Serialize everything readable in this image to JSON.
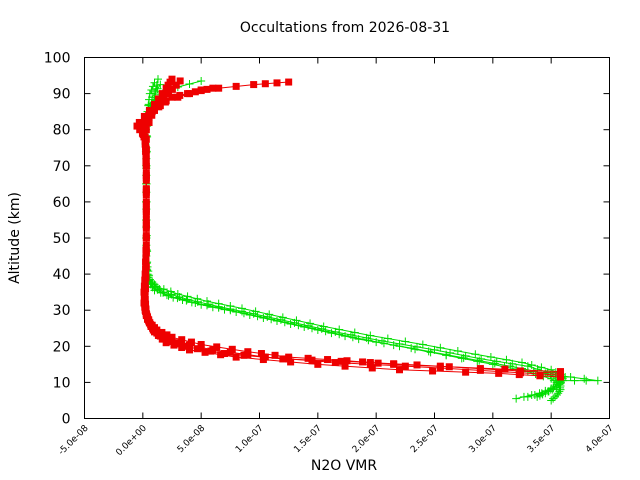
{
  "chart_data": {
    "type": "scatter",
    "title": "Occultations from 2026-08-31",
    "xlabel": "N2O VMR",
    "ylabel": "Altitude (km)",
    "xlim": [
      -5e-08,
      4e-07
    ],
    "ylim": [
      0,
      100
    ],
    "grid": false,
    "legend": "none",
    "x_ticks": [
      {
        "value": -5e-08,
        "label": "-5.0e-08"
      },
      {
        "value": 0,
        "label": "0.0e+00"
      },
      {
        "value": 5e-08,
        "label": "5.0e-08"
      },
      {
        "value": 1e-07,
        "label": "1.0e-07"
      },
      {
        "value": 1.5e-07,
        "label": "1.5e-07"
      },
      {
        "value": 2e-07,
        "label": "2.0e-07"
      },
      {
        "value": 2.5e-07,
        "label": "2.5e-07"
      },
      {
        "value": 3e-07,
        "label": "3.0e-07"
      },
      {
        "value": 3.5e-07,
        "label": "3.5e-07"
      },
      {
        "value": 4e-07,
        "label": "4.0e-07"
      }
    ],
    "y_ticks": [
      {
        "value": 0,
        "label": "0"
      },
      {
        "value": 10,
        "label": "10"
      },
      {
        "value": 20,
        "label": "20"
      },
      {
        "value": 30,
        "label": "30"
      },
      {
        "value": 40,
        "label": "40"
      },
      {
        "value": 50,
        "label": "50"
      },
      {
        "value": 60,
        "label": "60"
      },
      {
        "value": 70,
        "label": "70"
      },
      {
        "value": 80,
        "label": "80"
      },
      {
        "value": 90,
        "label": "90"
      },
      {
        "value": 100,
        "label": "100"
      }
    ],
    "series": [
      {
        "color": "#00dd00",
        "marker": "plus",
        "profiles": [
          [
            [
              3.5e-07,
              5
            ],
            [
              3.55e-07,
              6.5
            ],
            [
              3.58e-07,
              8
            ],
            [
              3.57e-07,
              9.5
            ],
            [
              3.5e-07,
              11
            ],
            [
              3.3e-07,
              13
            ],
            [
              3e-07,
              15
            ],
            [
              2.6e-07,
              17.5
            ],
            [
              2.2e-07,
              20
            ],
            [
              1.8e-07,
              22.5
            ],
            [
              1.45e-07,
              25
            ],
            [
              1.1e-07,
              27.5
            ],
            [
              7.5e-08,
              30
            ],
            [
              4.5e-08,
              32
            ],
            [
              2.2e-08,
              34
            ],
            [
              8e-09,
              36.5
            ],
            [
              4e-09,
              39
            ],
            [
              3e-09,
              45
            ],
            [
              3e-09,
              60
            ],
            [
              3e-09,
              75
            ],
            [
              4e-09,
              85
            ],
            [
              6e-09,
              90
            ],
            [
              1e-08,
              93
            ]
          ],
          [
            [
              3.38e-07,
              6
            ],
            [
              3.45e-07,
              7
            ],
            [
              3.52e-07,
              8.5
            ],
            [
              3.56e-07,
              10
            ],
            [
              3.62e-07,
              11.5
            ],
            [
              3.5e-07,
              13.5
            ],
            [
              3.25e-07,
              15.5
            ],
            [
              2.85e-07,
              17.8
            ],
            [
              2.4e-07,
              20.5
            ],
            [
              1.95e-07,
              23
            ],
            [
              1.55e-07,
              25.5
            ],
            [
              1.2e-07,
              28
            ],
            [
              8.5e-08,
              30.5
            ],
            [
              5.5e-08,
              32.5
            ],
            [
              3e-08,
              34.5
            ],
            [
              1.2e-08,
              36.5
            ],
            [
              6e-09,
              38.5
            ],
            [
              4e-09,
              42
            ],
            [
              3e-09,
              55
            ],
            [
              3e-09,
              70
            ],
            [
              4e-09,
              82
            ],
            [
              8e-09,
              89
            ],
            [
              1.5e-08,
              92.5
            ]
          ],
          [
            [
              3.2e-07,
              5.5
            ],
            [
              3.4e-07,
              7
            ],
            [
              3.55e-07,
              9
            ],
            [
              3.6e-07,
              10.5
            ],
            [
              3.9e-07,
              10.5
            ],
            [
              3.55e-07,
              12
            ],
            [
              3.3e-07,
              14.5
            ],
            [
              2.9e-07,
              16.5
            ],
            [
              2.5e-07,
              19
            ],
            [
              2.05e-07,
              21.5
            ],
            [
              1.65e-07,
              24
            ],
            [
              1.3e-07,
              26.5
            ],
            [
              9.5e-08,
              29
            ],
            [
              6.5e-08,
              31
            ],
            [
              3.8e-08,
              33
            ],
            [
              1.8e-08,
              35
            ],
            [
              7e-09,
              37.5
            ],
            [
              4e-09,
              40
            ],
            [
              3e-09,
              50
            ],
            [
              3e-09,
              65
            ],
            [
              3e-09,
              78
            ],
            [
              5e-09,
              87
            ],
            [
              2e-08,
              91
            ],
            [
              5e-08,
              93.5
            ]
          ],
          [
            [
              3.3e-07,
              6
            ],
            [
              3.48e-07,
              7.5
            ],
            [
              3.58e-07,
              9
            ],
            [
              3.58e-07,
              11
            ],
            [
              3.45e-07,
              12.5
            ],
            [
              3.15e-07,
              14.5
            ],
            [
              2.75e-07,
              16.8
            ],
            [
              2.3e-07,
              19.5
            ],
            [
              1.85e-07,
              22
            ],
            [
              1.5e-07,
              24.5
            ],
            [
              1.15e-07,
              27
            ],
            [
              8e-08,
              29.5
            ],
            [
              5e-08,
              31.5
            ],
            [
              2.6e-08,
              33.5
            ],
            [
              1e-08,
              35.5
            ],
            [
              5e-09,
              38
            ],
            [
              3e-09,
              43
            ],
            [
              3e-09,
              58
            ],
            [
              3e-09,
              72
            ],
            [
              2e-09,
              78
            ],
            [
              4e-09,
              84
            ],
            [
              1e-08,
              89
            ],
            [
              1.3e-08,
              94
            ]
          ]
        ]
      },
      {
        "color": "#ee0000",
        "marker": "square",
        "profiles": [
          [
            [
              3.58e-07,
              11.5
            ],
            [
              3.05e-07,
              12.5
            ],
            [
              2.2e-07,
              13.5
            ],
            [
              1.5e-07,
              15
            ],
            [
              8e-08,
              17
            ],
            [
              4e-08,
              19
            ],
            [
              2e-08,
              21
            ],
            [
              1e-08,
              24
            ],
            [
              5e-09,
              27
            ],
            [
              2e-09,
              30
            ],
            [
              1e-09,
              35
            ],
            [
              2e-09,
              40
            ],
            [
              3e-09,
              50
            ],
            [
              3e-09,
              60
            ],
            [
              3e-09,
              70
            ],
            [
              2e-09,
              78
            ],
            [
              -5e-09,
              81
            ],
            [
              5e-09,
              84
            ],
            [
              2e-08,
              88
            ],
            [
              5e-08,
              91
            ],
            [
              9.5e-08,
              92.5
            ],
            [
              1.25e-07,
              93.2
            ]
          ],
          [
            [
              3.58e-07,
              12
            ],
            [
              2.55e-07,
              14
            ],
            [
              1.65e-07,
              15.5
            ],
            [
              1.05e-07,
              17
            ],
            [
              6e-08,
              19
            ],
            [
              3e-08,
              21
            ],
            [
              1.5e-08,
              23
            ],
            [
              7e-09,
              25.5
            ],
            [
              3e-09,
              28.5
            ],
            [
              1e-09,
              32
            ],
            [
              2e-09,
              38
            ],
            [
              3e-09,
              48
            ],
            [
              3e-09,
              62
            ],
            [
              3e-09,
              74
            ],
            [
              0,
              80
            ],
            [
              8e-09,
              85
            ],
            [
              2.5e-08,
              89
            ],
            [
              4.5e-08,
              90.5
            ],
            [
              6e-08,
              91.5
            ]
          ],
          [
            [
              3.58e-07,
              12.5
            ],
            [
              2.55e-07,
              14.5
            ],
            [
              1.95e-07,
              15.5
            ],
            [
              1.2e-07,
              16.5
            ],
            [
              7e-08,
              18
            ],
            [
              3.5e-08,
              20
            ],
            [
              1.8e-08,
              22
            ],
            [
              9e-09,
              24.5
            ],
            [
              4e-09,
              27.5
            ],
            [
              2e-09,
              31
            ],
            [
              2e-09,
              37
            ],
            [
              3e-09,
              46
            ],
            [
              3e-09,
              58
            ],
            [
              3e-09,
              72
            ],
            [
              3e-09,
              80
            ],
            [
              1e-08,
              86
            ],
            [
              2.2e-08,
              90
            ],
            [
              3.2e-08,
              93.5
            ]
          ],
          [
            [
              3.58e-07,
              13
            ],
            [
              2.15e-07,
              15
            ],
            [
              1.75e-07,
              16
            ],
            [
              1.25e-07,
              17
            ],
            [
              9e-08,
              18.5
            ],
            [
              5e-08,
              20.5
            ],
            [
              2.5e-08,
              22.5
            ],
            [
              1.2e-08,
              24.5
            ],
            [
              6e-09,
              26.5
            ],
            [
              3e-09,
              29
            ],
            [
              2e-09,
              33
            ],
            [
              3e-09,
              42
            ],
            [
              3e-09,
              55
            ],
            [
              3e-09,
              68
            ],
            [
              2e-09,
              77
            ],
            [
              -3e-09,
              82
            ],
            [
              1e-08,
              87
            ],
            [
              2e-08,
              91.5
            ],
            [
              2.5e-08,
              94
            ]
          ]
        ]
      }
    ]
  }
}
